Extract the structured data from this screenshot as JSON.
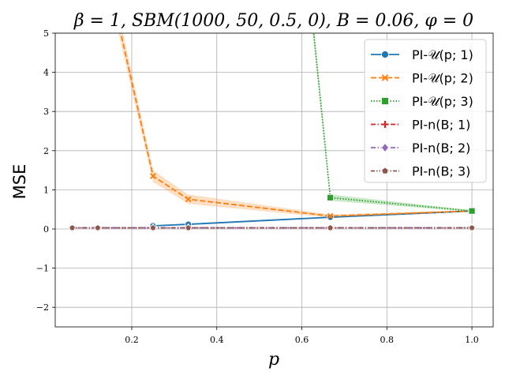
{
  "chart_data": {
    "type": "line",
    "title": "β = 1, SBM(1000, 50, 0.5, 0), B = 0.06, φ = 0",
    "xlabel": "p",
    "ylabel": "MSE",
    "xlim": [
      0.02,
      1.05
    ],
    "ylim": [
      -2.5,
      5
    ],
    "xticks": [
      "0.2",
      "0.4",
      "0.6",
      "0.8",
      "1.0"
    ],
    "yticks": [
      "5",
      "4",
      "3",
      "2",
      "1",
      "0",
      "−1",
      "−2"
    ],
    "grid": true,
    "legend_position": "top-right",
    "series": [
      {
        "name": "PI-𝒰(p; 1)",
        "color": "#1f77b4",
        "dash": "solid",
        "marker": "circle",
        "x": [
          0.25,
          0.333,
          0.667,
          1.0
        ],
        "y": [
          0.08,
          0.12,
          0.3,
          0.46
        ],
        "band": [
          0.0,
          0.02,
          0.02,
          0.02
        ]
      },
      {
        "name": "PI-𝒰(p; 2)",
        "color": "#ff7f0e",
        "dash": "dashed",
        "marker": "x",
        "x": [
          0.143,
          0.25,
          0.333,
          0.667,
          1.0
        ],
        "y": [
          6.5,
          1.35,
          0.76,
          0.33,
          0.46
        ],
        "band": [
          0.3,
          0.15,
          0.12,
          0.04,
          0.02
        ]
      },
      {
        "name": "PI-𝒰(p; 3)",
        "color": "#2ca02c",
        "dash": "dotted",
        "marker": "square",
        "x": [
          0.6,
          0.667,
          1.0
        ],
        "y": [
          8.0,
          0.8,
          0.46
        ],
        "band": [
          0.3,
          0.08,
          0.02
        ]
      },
      {
        "name": "PI-n(B; 1)",
        "color": "#d62728",
        "dash": "dashdot",
        "marker": "plus",
        "x": [
          0.06,
          0.12,
          0.25,
          0.333,
          0.667,
          1.0
        ],
        "y": [
          0.03,
          0.03,
          0.03,
          0.03,
          0.03,
          0.03
        ]
      },
      {
        "name": "PI-n(B; 2)",
        "color": "#9467bd",
        "dash": "dashdot",
        "marker": "diamond",
        "x": [
          0.06,
          0.12,
          0.25,
          0.333,
          0.667,
          1.0
        ],
        "y": [
          0.03,
          0.03,
          0.03,
          0.03,
          0.03,
          0.03
        ]
      },
      {
        "name": "PI-n(B; 3)",
        "color": "#8c564b",
        "dash": "dashdotdot",
        "marker": "pentagon",
        "x": [
          0.06,
          0.12,
          0.25,
          0.333,
          0.667,
          1.0
        ],
        "y": [
          0.03,
          0.03,
          0.03,
          0.03,
          0.03,
          0.03
        ]
      }
    ]
  }
}
